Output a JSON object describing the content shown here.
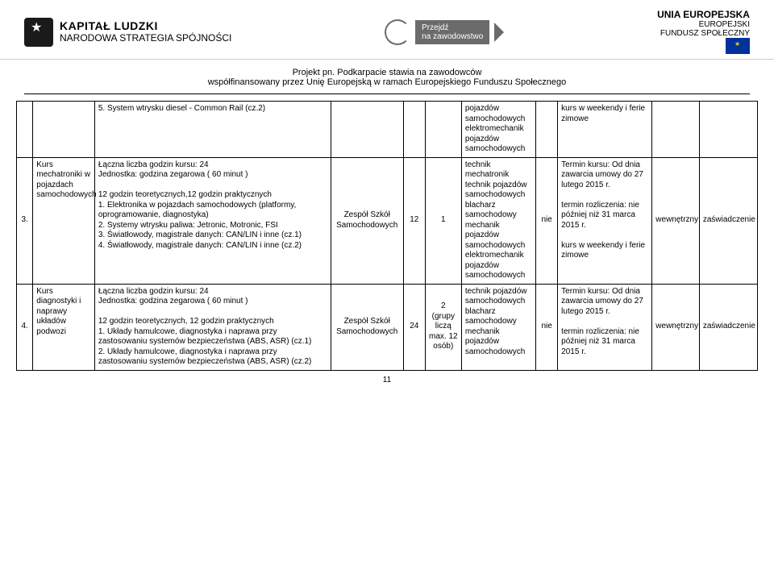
{
  "header": {
    "left": {
      "big": "KAPITAŁ LUDZKI",
      "sub": "NARODOWA STRATEGIA SPÓJNOŚCI"
    },
    "center": {
      "l1": "Przejdź",
      "l2": "na zawodowstwo"
    },
    "right": {
      "l1": "UNIA EUROPEJSKA",
      "l2": "EUROPEJSKI",
      "l3": "FUNDUSZ SPOŁECZNY"
    }
  },
  "project": {
    "l1": "Projekt pn. Podkarpacie stawia na zawodowców",
    "l2": "współfinansowany przez Unię Europejską w ramach Europejskiego Funduszu Społecznego"
  },
  "rows": [
    {
      "num": "",
      "course": "",
      "desc": "5. System wtrysku diesel - Common Rail (cz.2)",
      "zespol": "",
      "h12": "",
      "grp": "",
      "prof": "pojazdów samochodowych elektromechanik pojazdów samochodowych",
      "nie": "",
      "termin": "kurs w weekendy i ferie zimowe",
      "wewn": "",
      "zasw": ""
    },
    {
      "num": "3.",
      "course": "Kurs mechatroniki w pojazdach samochodowych",
      "desc": "Łączna liczba godzin kursu: 24\nJednostka: godzina zegarowa ( 60 minut )\n\n12 godzin teoretycznych,12 godzin praktycznych\n1. Elektronika w pojazdach samochodowych (platformy, oprogramowanie, diagnostyka)\n2. Systemy wtrysku paliwa: Jetronic, Motronic, FSI\n3. Światłowody, magistrale danych: CAN/LIN i inne (cz.1)\n4. Światłowody, magistrale danych: CAN/LIN i inne (cz.2)",
      "zespol": "Zespół Szkół Samochodowych",
      "h12": "12",
      "grp": "1",
      "prof": "technik mechatronik technik pojazdów samochodowych blacharz samochodowy mechanik pojazdów samochodowych elektromechanik pojazdów samochodowych",
      "nie": "nie",
      "termin": "Termin kursu: Od dnia zawarcia umowy do 27 lutego 2015 r.\n\ntermin rozliczenia: nie później niż 31 marca 2015 r.\n\nkurs w weekendy i ferie zimowe",
      "wewn": "wewnętrzny",
      "zasw": "zaświadczenie"
    },
    {
      "num": "4.",
      "course": "Kurs diagnostyki i naprawy układów podwozi",
      "desc": "Łączna liczba godzin kursu: 24\nJednostka: godzina zegarowa ( 60 minut )\n\n12 godzin teoretycznych, 12 godzin praktycznych\n1. Układy hamulcowe, diagnostyka i naprawa przy zastosowaniu systemów bezpieczeństwa (ABS, ASR) (cz.1)\n2. Układy hamulcowe, diagnostyka i naprawa przy zastosowaniu systemów bezpieczeństwa (ABS, ASR) (cz.2)",
      "zespol": "Zespół Szkół Samochodowych",
      "h12": "24",
      "grp": "2 (grupy liczą max. 12 osób)",
      "prof": "technik pojazdów samochodowych blacharz samochodowy mechanik pojazdów samochodowych",
      "nie": "nie",
      "termin": "Termin kursu: Od dnia zawarcia umowy do 27 lutego 2015 r.\n\ntermin rozliczenia: nie później niż 31 marca 2015 r.",
      "wewn": "wewnętrzny",
      "zasw": "zaświadczenie"
    }
  ],
  "page": "11"
}
